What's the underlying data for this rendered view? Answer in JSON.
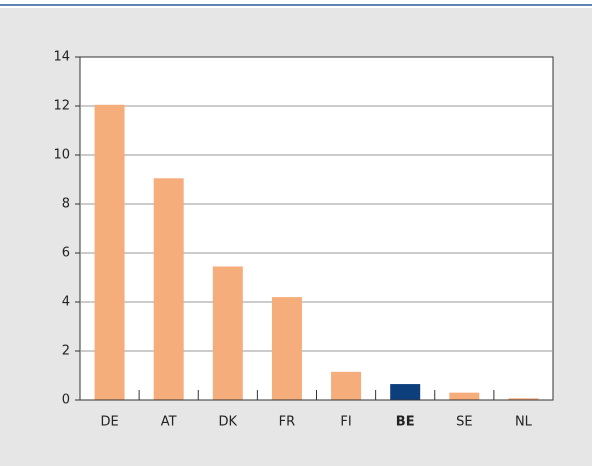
{
  "chart_data": {
    "type": "bar",
    "categories": [
      "DE",
      "AT",
      "DK",
      "FR",
      "FI",
      "BE",
      "SE",
      "NL"
    ],
    "values": [
      12.05,
      9.05,
      5.45,
      4.2,
      1.15,
      0.65,
      0.3,
      0.07
    ],
    "colors": [
      "#f5ad7c",
      "#f5ad7c",
      "#f5ad7c",
      "#f5ad7c",
      "#f5ad7c",
      "#0c3f7c",
      "#f5ad7c",
      "#f5ad7c"
    ],
    "ylim": [
      0,
      14
    ],
    "yticks": [
      0,
      2,
      4,
      6,
      8,
      10,
      12,
      14
    ],
    "grid": true
  }
}
